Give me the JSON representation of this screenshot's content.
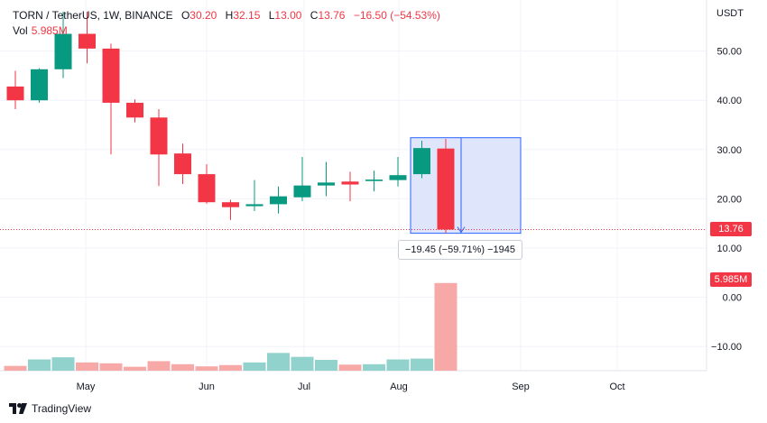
{
  "legend": {
    "symbol": "TORN / TetherUS, 1W, BINANCE",
    "open_label": "O",
    "open": "30.20",
    "high_label": "H",
    "high": "32.15",
    "low_label": "L",
    "low": "13.00",
    "close_label": "C",
    "close": "13.76",
    "change": "−16.50 (−54.53%)",
    "vol_label": "Vol",
    "vol_value": "5.985M"
  },
  "price_axis": {
    "currency": "USDT"
  },
  "badges": {
    "last_price": "13.76",
    "last_volume": "5.985M"
  },
  "measure": {
    "text": "−19.45 (−59.71%) −1945"
  },
  "branding": {
    "name": "TradingView"
  },
  "colors": {
    "up": "#089981",
    "down": "#f23645",
    "vol_up": "#92d2cc",
    "vol_down": "#f7a9a7",
    "measure_fill": "#dbe3fb",
    "measure_line": "#2962ff"
  },
  "chart_data": {
    "type": "candlestick",
    "price_ticks": [
      -10,
      0,
      10,
      20,
      30,
      40,
      50
    ],
    "price_tick_labels": [
      "−10.00",
      "0.00",
      "10.00",
      "20.00",
      "30.00",
      "40.00",
      "50.00"
    ],
    "x_tick_labels": [
      "May",
      "Jun",
      "Jul",
      "Aug",
      "Sep",
      "Oct"
    ],
    "candles": [
      {
        "o": 42.8,
        "h": 46.0,
        "l": 38.2,
        "c": 40.0
      },
      {
        "o": 40.0,
        "h": 46.5,
        "l": 39.5,
        "c": 46.3
      },
      {
        "o": 46.3,
        "h": 58.0,
        "l": 44.5,
        "c": 53.5
      },
      {
        "o": 53.5,
        "h": 58.0,
        "l": 47.5,
        "c": 50.5
      },
      {
        "o": 50.5,
        "h": 51.5,
        "l": 29.0,
        "c": 39.5
      },
      {
        "o": 39.5,
        "h": 40.2,
        "l": 35.5,
        "c": 36.5
      },
      {
        "o": 36.5,
        "h": 38.2,
        "l": 22.6,
        "c": 29.0
      },
      {
        "o": 29.2,
        "h": 31.2,
        "l": 23.0,
        "c": 25.0
      },
      {
        "o": 25.0,
        "h": 27.0,
        "l": 19.0,
        "c": 19.3
      },
      {
        "o": 19.3,
        "h": 19.8,
        "l": 15.7,
        "c": 18.3
      },
      {
        "o": 18.5,
        "h": 23.8,
        "l": 17.5,
        "c": 18.9
      },
      {
        "o": 18.9,
        "h": 22.5,
        "l": 17.0,
        "c": 20.5
      },
      {
        "o": 20.3,
        "h": 28.5,
        "l": 19.5,
        "c": 22.7
      },
      {
        "o": 22.7,
        "h": 27.5,
        "l": 20.5,
        "c": 23.3
      },
      {
        "o": 23.5,
        "h": 25.5,
        "l": 19.5,
        "c": 22.9
      },
      {
        "o": 23.6,
        "h": 25.7,
        "l": 21.5,
        "c": 23.9
      },
      {
        "o": 23.8,
        "h": 28.5,
        "l": 22.5,
        "c": 24.8
      },
      {
        "o": 25.0,
        "h": 31.8,
        "l": 24.2,
        "c": 30.3
      },
      {
        "o": 30.2,
        "h": 32.15,
        "l": 13.0,
        "c": 13.76
      }
    ],
    "volume_relative": [
      0.22,
      0.52,
      0.62,
      0.38,
      0.34,
      0.18,
      0.44,
      0.3,
      0.2,
      0.26,
      0.38,
      0.82,
      0.64,
      0.5,
      0.28,
      0.3,
      0.52,
      0.56,
      4.05
    ],
    "last_price_line": 13.76,
    "measure_range": {
      "from_price": 32.4,
      "to_price": 13.0,
      "from_bar": 17,
      "to_bar": 22
    }
  }
}
